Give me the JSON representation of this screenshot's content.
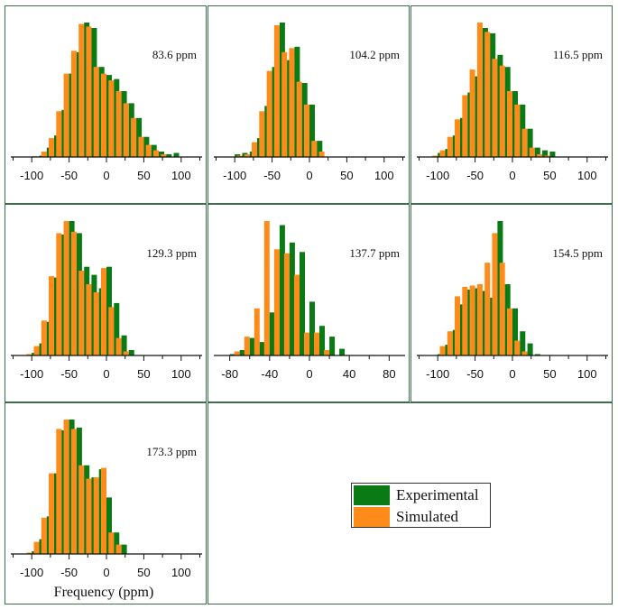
{
  "colors": {
    "experimental": "#0a7a14",
    "simulated": "#ff8c1a",
    "frame": "#3b6f4c"
  },
  "legend": {
    "experimental_label": "Experimental",
    "simulated_label": "Simulated"
  },
  "xlabel": "Frequency (ppm)",
  "chart_data": [
    {
      "type": "bar",
      "title": "83.6 ppm",
      "xlim": [
        -128,
        128
      ],
      "ticks": [
        -100,
        -50,
        0,
        50,
        100
      ],
      "tick_labels": [
        "-100",
        "-50",
        "0",
        "50",
        "100"
      ],
      "x": [
        -100,
        -90,
        -80,
        -70,
        -60,
        -50,
        -40,
        -30,
        -20,
        -10,
        0,
        10,
        20,
        30,
        40,
        50,
        60,
        70,
        80,
        90,
        100,
        110
      ],
      "series": [
        {
          "name": "Experimental",
          "values": [
            0.5,
            1,
            7,
            16,
            35,
            62,
            78,
            100,
            96,
            67,
            61,
            58,
            49,
            40,
            29,
            15,
            9,
            4,
            2,
            3,
            0,
            0
          ]
        },
        {
          "name": "Simulated",
          "values": [
            0,
            0,
            4,
            14,
            34,
            62,
            79,
            99,
            97,
            67,
            62,
            57,
            49,
            40,
            29,
            15,
            9,
            5,
            2,
            0,
            0,
            0
          ]
        }
      ]
    },
    {
      "type": "bar",
      "title": "104.2 ppm",
      "xlim": [
        -128,
        128
      ],
      "ticks": [
        -100,
        -50,
        0,
        50,
        100
      ],
      "tick_labels": [
        "-100",
        "-50",
        "0",
        "50",
        "100"
      ],
      "x": [
        -100,
        -90,
        -80,
        -70,
        -60,
        -50,
        -40,
        -30,
        -20,
        -10,
        0,
        10,
        20,
        30,
        40,
        50,
        60,
        70,
        80,
        90
      ],
      "series": [
        {
          "name": "Experimental",
          "values": [
            2,
            3,
            4,
            14,
            38,
            67,
            100,
            72,
            82,
            55,
            39,
            12,
            0,
            0,
            0,
            0,
            0,
            0,
            0,
            0
          ]
        },
        {
          "name": "Simulated",
          "values": [
            0,
            1,
            2,
            11,
            34,
            64,
            98,
            78,
            81,
            56,
            39,
            12,
            4,
            0,
            0,
            0,
            0,
            0,
            0,
            0
          ]
        }
      ]
    },
    {
      "type": "bar",
      "title": "116.5 ppm",
      "xlim": [
        -128,
        128
      ],
      "ticks": [
        -100,
        -50,
        0,
        50,
        100
      ],
      "tick_labels": [
        "-100",
        "-50",
        "0",
        "50",
        "100"
      ],
      "x": [
        -100,
        -90,
        -80,
        -70,
        -60,
        -50,
        -40,
        -30,
        -20,
        -10,
        0,
        10,
        20,
        30,
        40,
        50,
        60,
        70,
        80,
        90,
        100,
        110
      ],
      "series": [
        {
          "name": "Experimental",
          "values": [
            3,
            6,
            16,
            29,
            48,
            60,
            96,
            92,
            76,
            67,
            49,
            39,
            21,
            7,
            5,
            4,
            0,
            0,
            0,
            0,
            0,
            0
          ]
        },
        {
          "name": "Simulated",
          "values": [
            1,
            5,
            15,
            28,
            46,
            65,
            100,
            93,
            73,
            68,
            49,
            39,
            21,
            7,
            2,
            1,
            0,
            0,
            0,
            0,
            0,
            0
          ]
        }
      ]
    },
    {
      "type": "bar",
      "title": "129.3 ppm",
      "xlim": [
        -128,
        128
      ],
      "ticks": [
        -100,
        -50,
        0,
        50,
        100
      ],
      "tick_labels": [
        "-100",
        "-50",
        "0",
        "50",
        "100"
      ],
      "x": [
        -100,
        -90,
        -80,
        -70,
        -60,
        -50,
        -40,
        -30,
        -20,
        -10,
        0,
        10,
        20,
        30,
        40,
        50,
        60,
        70,
        80,
        90
      ],
      "series": [
        {
          "name": "Experimental",
          "values": [
            2,
            9,
            25,
            58,
            90,
            100,
            91,
            66,
            60,
            50,
            66,
            39,
            15,
            4,
            0,
            0,
            0,
            0,
            0,
            0
          ]
        },
        {
          "name": "Simulated",
          "values": [
            1,
            7,
            26,
            59,
            91,
            100,
            92,
            63,
            53,
            47,
            65,
            36,
            13,
            3,
            0,
            0,
            0,
            0,
            0,
            0
          ]
        }
      ]
    },
    {
      "type": "bar",
      "title": "137.7 ppm",
      "xlim": [
        -96,
        96
      ],
      "ticks": [
        -80,
        -40,
        0,
        40,
        80
      ],
      "tick_labels": [
        "-80",
        "-40",
        "0",
        "40",
        "80"
      ],
      "x": [
        -80,
        -70,
        -60,
        -50,
        -40,
        -30,
        -20,
        -10,
        0,
        10,
        20,
        30,
        40,
        50,
        60,
        70,
        80
      ],
      "series": [
        {
          "name": "Experimental",
          "values": [
            1,
            4,
            13,
            10,
            32,
            97,
            84,
            77,
            40,
            22,
            14,
            5,
            0,
            0,
            0,
            0,
            0
          ]
        },
        {
          "name": "Simulated",
          "values": [
            0,
            3,
            14,
            35,
            100,
            79,
            76,
            60,
            17,
            17,
            4,
            0,
            0,
            0,
            0,
            0,
            0
          ]
        }
      ]
    },
    {
      "type": "bar",
      "title": "154.5 ppm",
      "xlim": [
        -128,
        128
      ],
      "ticks": [
        -100,
        -50,
        0,
        50,
        100
      ],
      "tick_labels": [
        "-100",
        "-50",
        "0",
        "50",
        "100"
      ],
      "x": [
        -100,
        -90,
        -80,
        -70,
        -60,
        -50,
        -40,
        -30,
        -20,
        -10,
        0,
        10,
        20,
        30,
        40,
        50,
        60,
        70,
        80,
        90
      ],
      "series": [
        {
          "name": "Experimental",
          "values": [
            1,
            8,
            19,
            38,
            49,
            50,
            48,
            43,
            100,
            53,
            35,
            18,
            9,
            1,
            0,
            0,
            0,
            0,
            0,
            0
          ]
        },
        {
          "name": "Simulated",
          "values": [
            0,
            7,
            18,
            44,
            51,
            52,
            53,
            69,
            91,
            69,
            35,
            11,
            3,
            0,
            0,
            0,
            0,
            0,
            0,
            0
          ]
        }
      ]
    },
    {
      "type": "bar",
      "title": "173.3 ppm",
      "xlim": [
        -128,
        128
      ],
      "ticks": [
        -100,
        -50,
        0,
        50,
        100
      ],
      "tick_labels": [
        "-100",
        "-50",
        "0",
        "50",
        "100"
      ],
      "x": [
        -100,
        -90,
        -80,
        -70,
        -60,
        -50,
        -40,
        -30,
        -20,
        -10,
        0,
        10,
        20,
        30,
        40,
        50,
        60,
        70,
        80,
        90
      ],
      "series": [
        {
          "name": "Experimental",
          "values": [
            2,
            11,
            28,
            60,
            92,
            100,
            94,
            66,
            57,
            63,
            42,
            16,
            7,
            0,
            0,
            0,
            0,
            0,
            0,
            0
          ]
        },
        {
          "name": "Simulated",
          "values": [
            1,
            9,
            27,
            60,
            93,
            100,
            93,
            66,
            56,
            57,
            64,
            16,
            7,
            0,
            0,
            0,
            0,
            0,
            0,
            0
          ]
        }
      ]
    }
  ]
}
